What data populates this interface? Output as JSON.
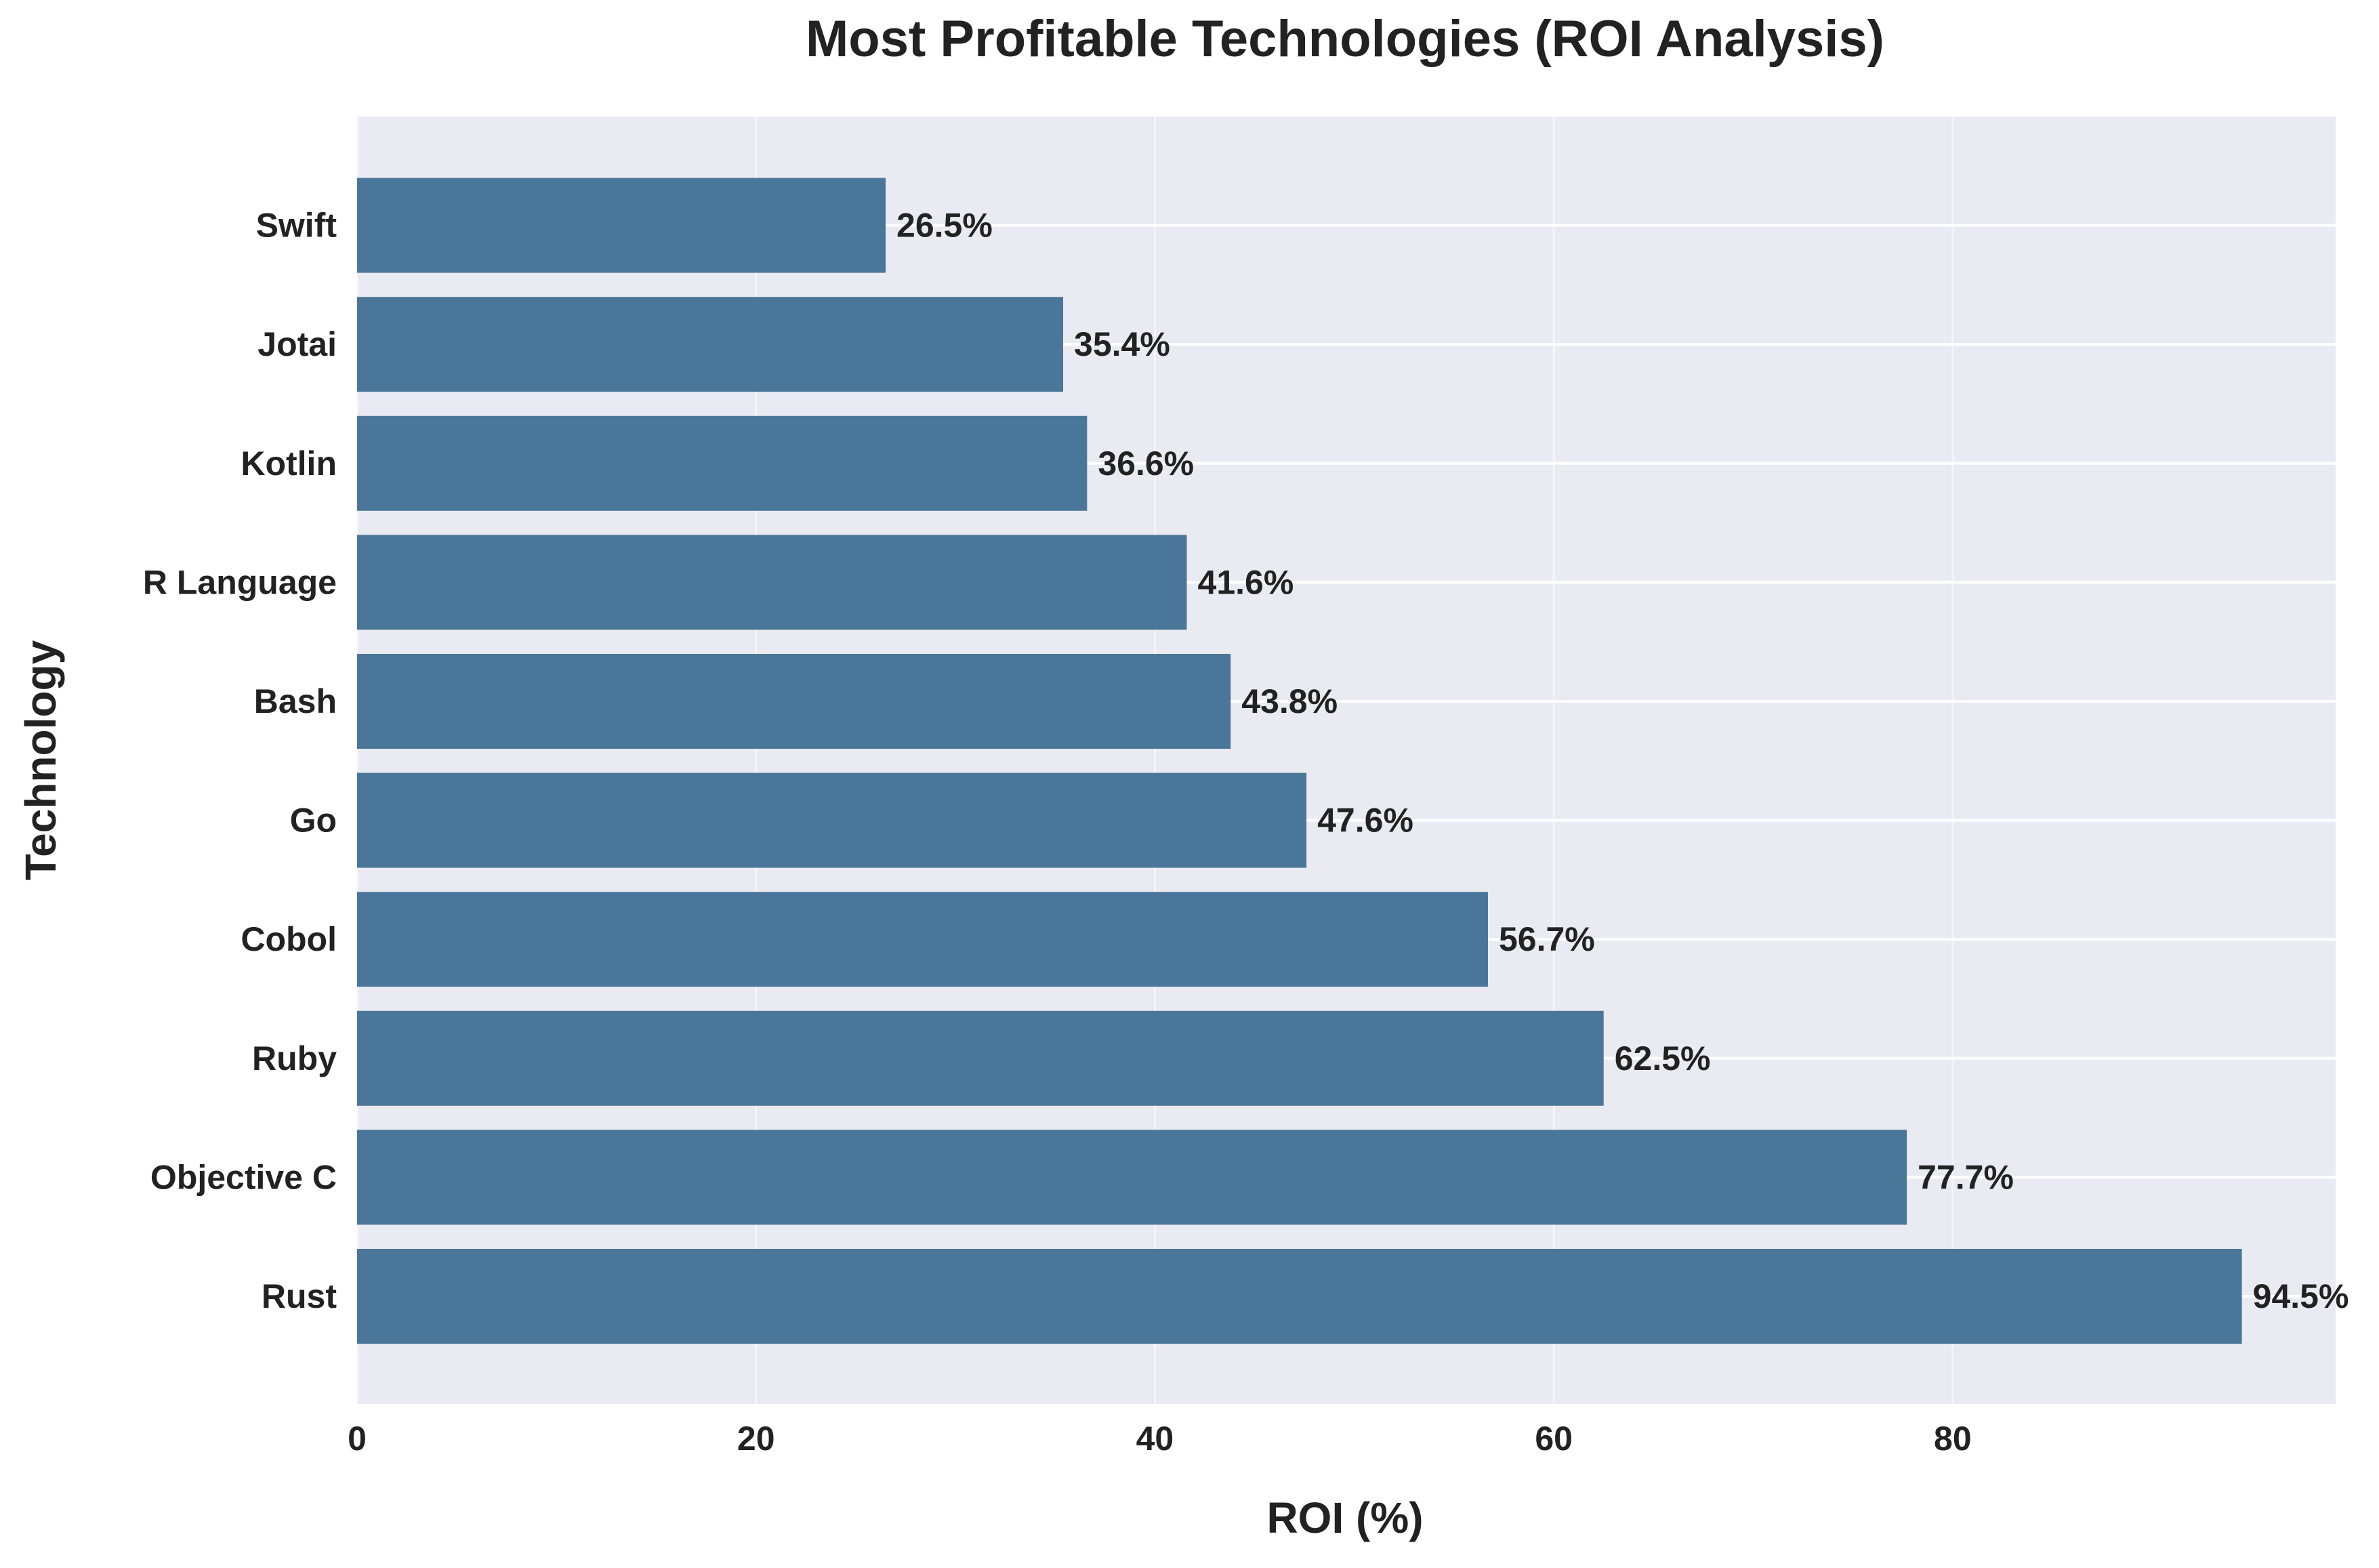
{
  "chart_data": {
    "type": "bar",
    "orientation": "horizontal",
    "title": "Most Profitable Technologies (ROI Analysis)",
    "xlabel": "ROI (%)",
    "ylabel": "Technology",
    "categories": [
      "Rust",
      "Objective C",
      "Ruby",
      "Cobol",
      "Go",
      "Bash",
      "R Language",
      "Kotlin",
      "Jotai",
      "Swift"
    ],
    "values": [
      94.5,
      77.7,
      62.5,
      56.7,
      47.6,
      43.8,
      41.6,
      36.6,
      35.4,
      26.5
    ],
    "value_labels": [
      "94.5%",
      "77.7%",
      "62.5%",
      "56.7%",
      "47.6%",
      "43.8%",
      "41.6%",
      "36.6%",
      "35.4%",
      "26.5%"
    ],
    "xlim": [
      0,
      99.2
    ],
    "xticks": [
      0,
      20,
      40,
      60,
      80
    ],
    "xtick_labels": [
      "0",
      "20",
      "40",
      "60",
      "80"
    ],
    "grid": true,
    "colors": {
      "bar": "#4a7799",
      "plot_background": "#eaeaf2",
      "grid": "#ffffff",
      "text": "#222222"
    }
  }
}
